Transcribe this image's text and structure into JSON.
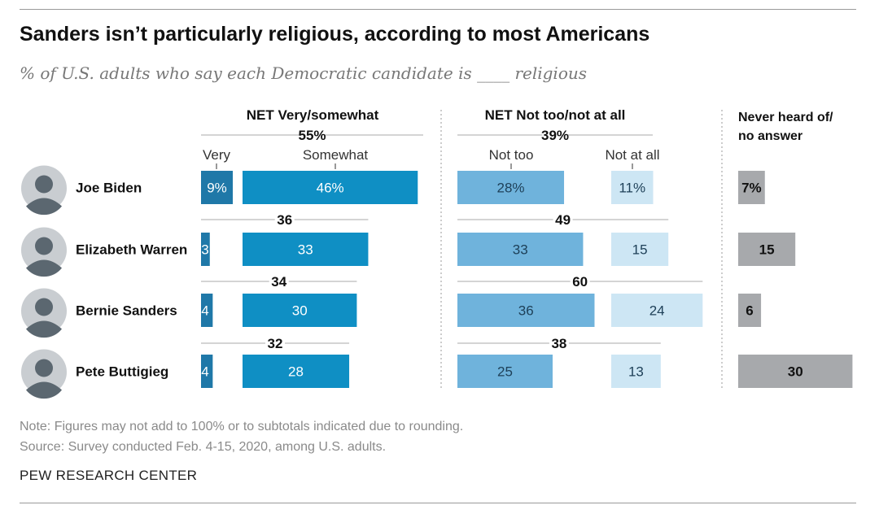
{
  "title": "Sanders isn’t particularly religious, according to most Americans",
  "subtitle": "% of U.S. adults who say each Democratic candidate is ____ religious",
  "note": "Note: Figures may not add to 100% or to subtotals indicated due to rounding.",
  "source": "Source: Survey conducted Feb. 4-15, 2020, among U.S. adults.",
  "brand": "PEW RESEARCH CENTER",
  "colors": {
    "very": "#1f78a8",
    "somewhat": "#0f8fc4",
    "not_too": "#6fb3dc",
    "not_at_all": "#cde6f4",
    "never_heard": "#a7a9ac",
    "photo_icons": "#5b6770"
  },
  "chart_data": {
    "type": "bar",
    "orientation": "horizontal",
    "stacked": true,
    "categories": [
      "Joe Biden",
      "Elizabeth Warren",
      "Bernie Sanders",
      "Pete Buttigieg"
    ],
    "category_icons": [
      "joe-biden-photo",
      "elizabeth-warren-photo",
      "bernie-sanders-photo",
      "pete-buttigieg-photo"
    ],
    "groups": [
      {
        "name": "NET Very/somewhat",
        "net_values": [
          55,
          36,
          34,
          32
        ],
        "net_labels": [
          "55%",
          "36",
          "34",
          "32"
        ],
        "series": [
          {
            "name": "Very",
            "values": [
              9,
              3,
              4,
              4
            ],
            "labels": [
              "9%",
              "3",
              "4",
              "4"
            ]
          },
          {
            "name": "Somewhat",
            "values": [
              46,
              33,
              30,
              28
            ],
            "labels": [
              "46%",
              "33",
              "30",
              "28"
            ]
          }
        ]
      },
      {
        "name": "NET Not too/not at all",
        "net_values": [
          39,
          49,
          60,
          38
        ],
        "net_labels": [
          "39%",
          "49",
          "60",
          "38"
        ],
        "series": [
          {
            "name": "Not too",
            "values": [
              28,
              33,
              36,
              25
            ],
            "labels": [
              "28%",
              "33",
              "36",
              "25"
            ]
          },
          {
            "name": "Not at all",
            "values": [
              11,
              15,
              24,
              13
            ],
            "labels": [
              "11%",
              "15",
              "24",
              "13"
            ]
          }
        ]
      },
      {
        "name": "Never heard of/ no answer",
        "name_lines": [
          "Never heard of/",
          "no answer"
        ],
        "series": [
          {
            "name": "Never heard of/ no answer",
            "values": [
              7,
              15,
              6,
              30
            ],
            "labels": [
              "7%",
              "15",
              "6",
              "30"
            ]
          }
        ]
      }
    ]
  }
}
